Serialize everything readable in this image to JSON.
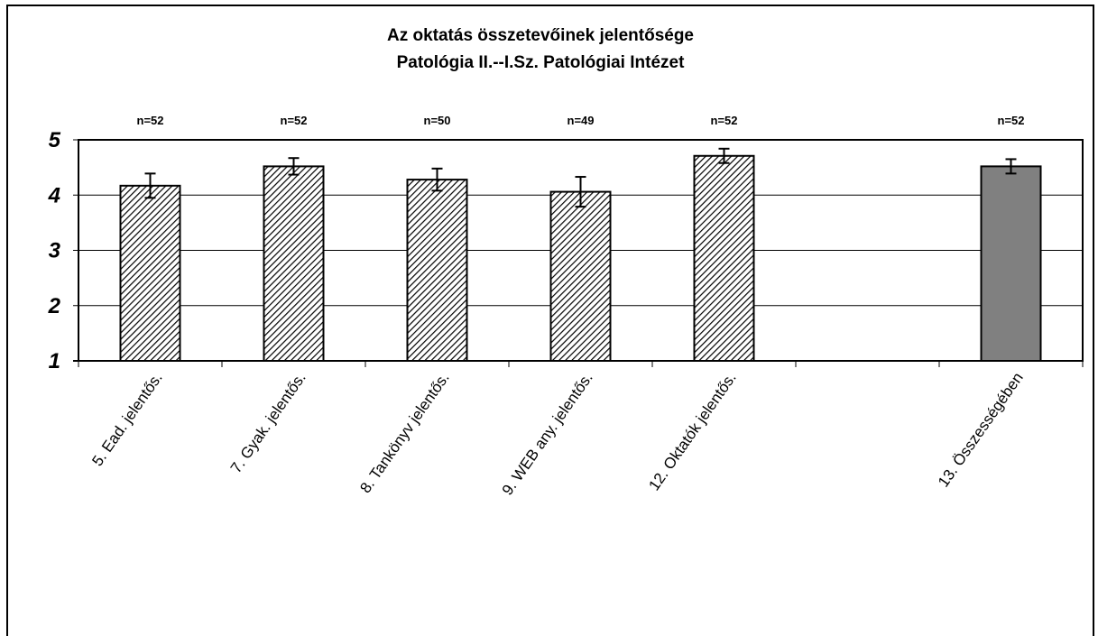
{
  "chart_data": {
    "type": "bar",
    "title": "Az oktatás összetevőinek jelentősége",
    "subtitle": "Patológia II.--I.Sz. Patológiai Intézet",
    "xlabel": "",
    "ylabel": "",
    "categories": [
      "5. Ead. jelentős.",
      "7. Gyak. jelentős.",
      "8. Tankönyv jelentős.",
      "9. WEB any. jelentős.",
      "12. Oktatók jelentős.",
      "",
      "13. Összességében"
    ],
    "values": [
      4.17,
      4.52,
      4.28,
      4.06,
      4.71,
      null,
      4.52
    ],
    "error": [
      0.22,
      0.15,
      0.2,
      0.27,
      0.13,
      null,
      0.13
    ],
    "n_labels": [
      "n=52",
      "n=52",
      "n=50",
      "n=49",
      "n=52",
      "",
      "n=52"
    ],
    "bar_styles": [
      "hatch",
      "hatch",
      "hatch",
      "hatch",
      "hatch",
      "none",
      "solid"
    ],
    "ylim": [
      1,
      5
    ],
    "yticks": [
      "1",
      "2",
      "3",
      "4",
      "5"
    ],
    "grid": true,
    "colors": {
      "solid_bar": "#808080",
      "hatch_line": "#000000",
      "background": "#ffffff"
    }
  }
}
